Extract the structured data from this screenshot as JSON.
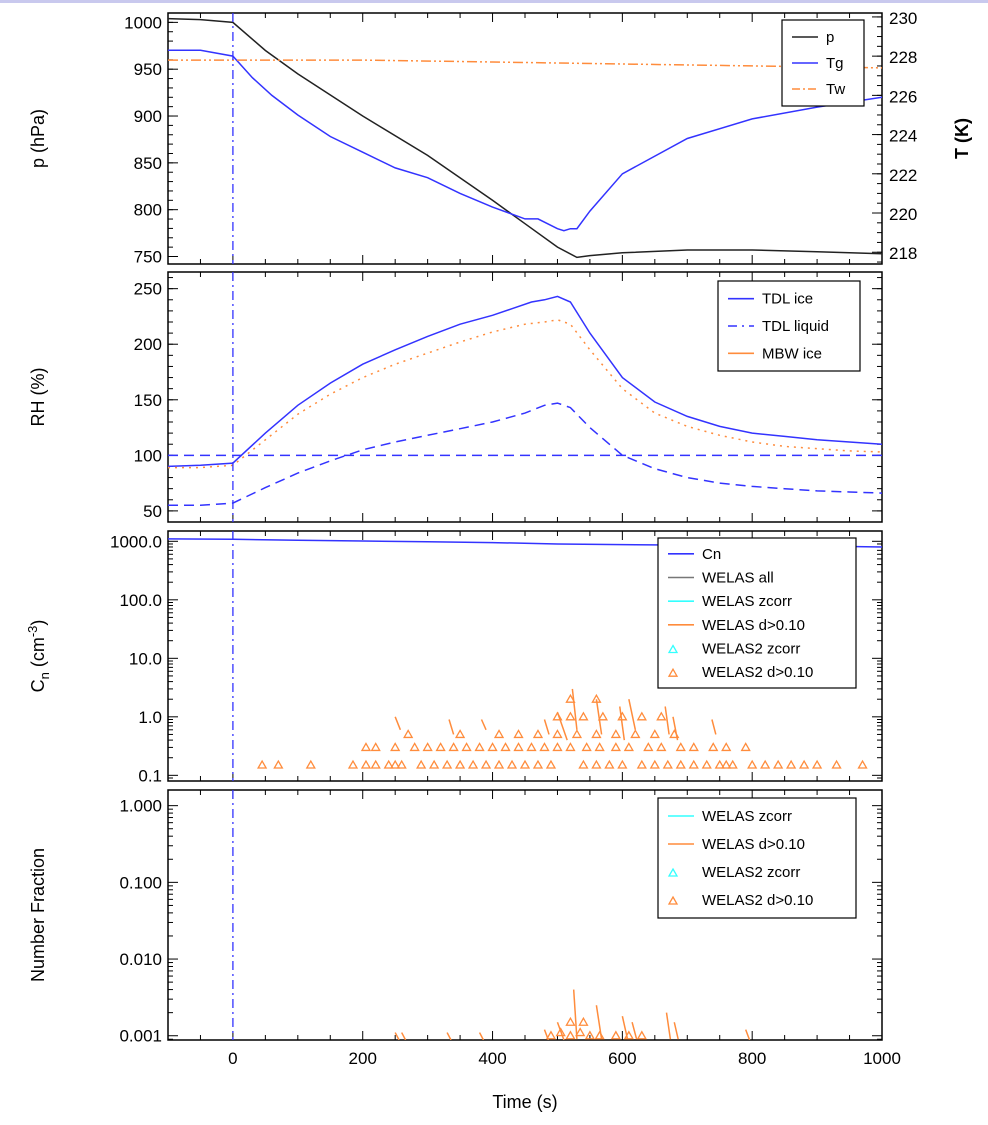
{
  "xaxis": {
    "label": "Time (s)",
    "range": [
      -100,
      1000
    ],
    "ticks": [
      0,
      200,
      400,
      600,
      800,
      1000
    ],
    "tick_labels": [
      "0",
      "200",
      "400",
      "600",
      "800",
      "1000"
    ]
  },
  "event_line_x": 0,
  "colors": {
    "blue": "#3333ff",
    "black": "#222222",
    "orange": "#ff8c3c",
    "cyan": "#33ffff",
    "gray": "#777777"
  },
  "chart_data": [
    {
      "type": "line",
      "ylabel": "p (hPa)",
      "ylim": [
        742,
        1010
      ],
      "yticks": [
        750,
        800,
        850,
        900,
        950,
        1000
      ],
      "ytick_labels": [
        "750",
        "800",
        "850",
        "900",
        "950",
        "1000"
      ],
      "y2label": "T (K)",
      "y2lim": [
        217.4,
        230.2
      ],
      "y2ticks": [
        218,
        220,
        222,
        224,
        226,
        228,
        230
      ],
      "y2tick_labels": [
        "218",
        "220",
        "222",
        "224",
        "226",
        "228",
        "230"
      ],
      "legend": [
        "p",
        "Tg",
        "Tw"
      ],
      "series": [
        {
          "name": "p",
          "axis": "left",
          "color": "#222222",
          "dash": "",
          "x": [
            -100,
            -50,
            0,
            50,
            100,
            200,
            300,
            400,
            450,
            500,
            530,
            550,
            600,
            700,
            800,
            900,
            1000
          ],
          "y": [
            1004,
            1003,
            1000,
            970,
            945,
            900,
            858,
            810,
            785,
            760,
            749,
            751,
            754,
            757,
            757,
            755,
            753
          ]
        },
        {
          "name": "Tg",
          "axis": "right",
          "color": "#3333ff",
          "dash": "",
          "x": [
            -100,
            -50,
            0,
            30,
            60,
            100,
            150,
            200,
            250,
            300,
            350,
            400,
            450,
            470,
            500,
            510,
            520,
            530,
            550,
            600,
            700,
            800,
            900,
            1000
          ],
          "y": [
            228.3,
            228.3,
            228.0,
            226.9,
            226.0,
            225.0,
            223.9,
            223.1,
            222.3,
            221.8,
            221.0,
            220.3,
            219.7,
            219.7,
            219.2,
            219.1,
            219.2,
            219.2,
            220.1,
            222.0,
            223.8,
            224.8,
            225.4,
            225.9
          ]
        },
        {
          "name": "Tw",
          "axis": "right",
          "color": "#ff8c3c",
          "dash": "10 3 2 3 2 3",
          "x": [
            -100,
            0,
            200,
            400,
            600,
            800,
            1000
          ],
          "y": [
            227.8,
            227.8,
            227.8,
            227.7,
            227.6,
            227.5,
            227.4
          ]
        }
      ]
    },
    {
      "type": "line",
      "ylabel": "RH (%)",
      "ylim": [
        40,
        265
      ],
      "yticks": [
        50,
        100,
        150,
        200,
        250
      ],
      "ytick_labels": [
        "50",
        "100",
        "150",
        "200",
        "250"
      ],
      "reference_line_y": 100,
      "legend": [
        "TDL ice",
        "TDL liquid",
        "MBW ice"
      ],
      "series": [
        {
          "name": "TDL ice",
          "color": "#3333ff",
          "dash": "",
          "x": [
            -100,
            -50,
            0,
            50,
            100,
            150,
            200,
            250,
            300,
            350,
            400,
            430,
            460,
            480,
            500,
            520,
            550,
            600,
            650,
            700,
            750,
            800,
            850,
            900,
            950,
            1000
          ],
          "y": [
            90,
            91,
            93,
            120,
            145,
            165,
            182,
            195,
            207,
            218,
            226,
            232,
            238,
            240,
            243,
            238,
            210,
            170,
            148,
            135,
            126,
            120,
            117,
            114,
            112,
            110
          ]
        },
        {
          "name": "TDL liquid",
          "color": "#3333ff",
          "dash": "10 6",
          "x": [
            -100,
            -50,
            0,
            50,
            100,
            150,
            200,
            250,
            300,
            350,
            400,
            450,
            480,
            500,
            520,
            550,
            600,
            650,
            700,
            750,
            800,
            850,
            900,
            950,
            1000
          ],
          "y": [
            55,
            55,
            57,
            71,
            84,
            95,
            105,
            112,
            118,
            124,
            130,
            138,
            145,
            147,
            143,
            125,
            100,
            88,
            80,
            75,
            72,
            70,
            68,
            67,
            66
          ]
        },
        {
          "name": "MBW ice",
          "color": "#ff8c3c",
          "dash": "2 5",
          "x": [
            -100,
            -50,
            0,
            50,
            100,
            150,
            200,
            250,
            300,
            350,
            400,
            450,
            480,
            500,
            520,
            550,
            600,
            650,
            700,
            750,
            800,
            850,
            900,
            950,
            1000
          ],
          "y": [
            89,
            89,
            91,
            114,
            137,
            155,
            170,
            182,
            192,
            202,
            211,
            218,
            220,
            222,
            218,
            195,
            160,
            138,
            126,
            118,
            112,
            108,
            106,
            104,
            103
          ]
        }
      ]
    },
    {
      "type": "line",
      "ylabel": "Cn (cm-3)",
      "ylabel_parts": {
        "base": "C",
        "sub": "n",
        "unit_open": " (cm",
        "sup": "-3",
        "unit_close": ")"
      },
      "log": true,
      "ylim": [
        0.08,
        1500
      ],
      "yticks": [
        0.1,
        1,
        10,
        100,
        1000
      ],
      "ytick_labels": [
        "0.1",
        "1.0",
        "10.0",
        "100.0",
        "1000.0"
      ],
      "legend": [
        "Cn",
        "WELAS all",
        "WELAS zcorr",
        "WELAS d>0.10",
        "WELAS2 zcorr",
        "WELAS2 d>0.10"
      ],
      "series": [
        {
          "name": "Cn",
          "color": "#3333ff",
          "dash": "",
          "x": [
            -100,
            0,
            100,
            200,
            300,
            400,
            500,
            600,
            700,
            800,
            900,
            1000
          ],
          "y": [
            1100,
            1080,
            1040,
            1010,
            980,
            950,
            900,
            880,
            860,
            850,
            830,
            800
          ]
        },
        {
          "name": "WELAS d>0.10",
          "color": "#ff8c3c",
          "dash": "",
          "kind": "segments",
          "segments": [
            [
              250,
              1.0,
              258,
              0.6
            ],
            [
              333,
              0.9,
              340,
              0.5
            ],
            [
              383,
              0.9,
              390,
              0.6
            ],
            [
              480,
              0.9,
              487,
              0.5
            ],
            [
              500,
              1.2,
              515,
              0.4
            ],
            [
              523,
              3.0,
              530,
              0.6
            ],
            [
              560,
              2.0,
              568,
              0.5
            ],
            [
              596,
              1.5,
              603,
              0.4
            ],
            [
              610,
              2.0,
              620,
              0.6
            ],
            [
              666,
              1.5,
              672,
              0.5
            ],
            [
              678,
              1.0,
              685,
              0.4
            ],
            [
              738,
              0.9,
              744,
              0.5
            ]
          ]
        },
        {
          "name": "WELAS2 d>0.10",
          "color": "#ff8c3c",
          "kind": "triangles",
          "x": [
            45,
            70,
            120,
            185,
            205,
            220,
            240,
            250,
            260,
            290,
            310,
            330,
            350,
            370,
            390,
            410,
            430,
            450,
            470,
            490,
            540,
            560,
            580,
            600,
            630,
            650,
            670,
            690,
            710,
            730,
            750,
            760,
            770,
            800,
            820,
            840,
            860,
            880,
            900,
            930,
            970,
            205,
            220,
            250,
            280,
            300,
            320,
            340,
            360,
            380,
            400,
            420,
            440,
            460,
            480,
            500,
            520,
            545,
            565,
            590,
            610,
            640,
            660,
            690,
            710,
            740,
            760,
            790,
            270,
            350,
            410,
            440,
            470,
            500,
            530,
            560,
            590,
            620,
            650,
            680,
            500,
            520,
            540,
            570,
            600,
            630,
            660,
            520,
            560
          ],
          "y": [
            0.15,
            0.15,
            0.15,
            0.15,
            0.15,
            0.15,
            0.15,
            0.15,
            0.15,
            0.15,
            0.15,
            0.15,
            0.15,
            0.15,
            0.15,
            0.15,
            0.15,
            0.15,
            0.15,
            0.15,
            0.15,
            0.15,
            0.15,
            0.15,
            0.15,
            0.15,
            0.15,
            0.15,
            0.15,
            0.15,
            0.15,
            0.15,
            0.15,
            0.15,
            0.15,
            0.15,
            0.15,
            0.15,
            0.15,
            0.15,
            0.15,
            0.3,
            0.3,
            0.3,
            0.3,
            0.3,
            0.3,
            0.3,
            0.3,
            0.3,
            0.3,
            0.3,
            0.3,
            0.3,
            0.3,
            0.3,
            0.3,
            0.3,
            0.3,
            0.3,
            0.3,
            0.3,
            0.3,
            0.3,
            0.3,
            0.3,
            0.3,
            0.3,
            0.5,
            0.5,
            0.5,
            0.5,
            0.5,
            0.5,
            0.5,
            0.5,
            0.5,
            0.5,
            0.5,
            0.5,
            1.0,
            1.0,
            1.0,
            1.0,
            1.0,
            1.0,
            1.0,
            2.0,
            2.0
          ]
        }
      ]
    },
    {
      "type": "line",
      "ylabel": "Number Fraction",
      "log": true,
      "ylim": [
        0.00088,
        1.6
      ],
      "yticks": [
        0.001,
        0.01,
        0.1,
        1
      ],
      "ytick_labels": [
        "0.001",
        "0.010",
        "0.100",
        "1.000"
      ],
      "legend": [
        "WELAS zcorr",
        "WELAS d>0.10",
        "WELAS2 zcorr",
        "WELAS2 d>0.10"
      ],
      "series": [
        {
          "name": "WELAS d>0.10",
          "color": "#ff8c3c",
          "dash": "",
          "kind": "segments",
          "segments": [
            [
              250,
              0.0011,
              256,
              0.00088
            ],
            [
              260,
              0.0011,
              266,
              0.00088
            ],
            [
              330,
              0.0011,
              336,
              0.00088
            ],
            [
              380,
              0.0011,
              386,
              0.00088
            ],
            [
              480,
              0.0012,
              486,
              0.00088
            ],
            [
              500,
              0.0015,
              510,
              0.00088
            ],
            [
              525,
              0.004,
              530,
              0.0009
            ],
            [
              560,
              0.0025,
              568,
              0.0009
            ],
            [
              600,
              0.0018,
              608,
              0.0009
            ],
            [
              615,
              0.0015,
              622,
              0.0009
            ],
            [
              668,
              0.002,
              674,
              0.0009
            ],
            [
              680,
              0.0015,
              686,
              0.0009
            ],
            [
              790,
              0.0012,
              796,
              0.00088
            ]
          ]
        },
        {
          "name": "WELAS2 d>0.10",
          "color": "#ff8c3c",
          "kind": "triangles",
          "x": [
            490,
            505,
            520,
            535,
            550,
            565,
            590,
            610,
            630,
            520,
            540
          ],
          "y": [
            0.001,
            0.0011,
            0.001,
            0.0011,
            0.001,
            0.001,
            0.001,
            0.001,
            0.001,
            0.0015,
            0.0015
          ]
        }
      ]
    }
  ]
}
